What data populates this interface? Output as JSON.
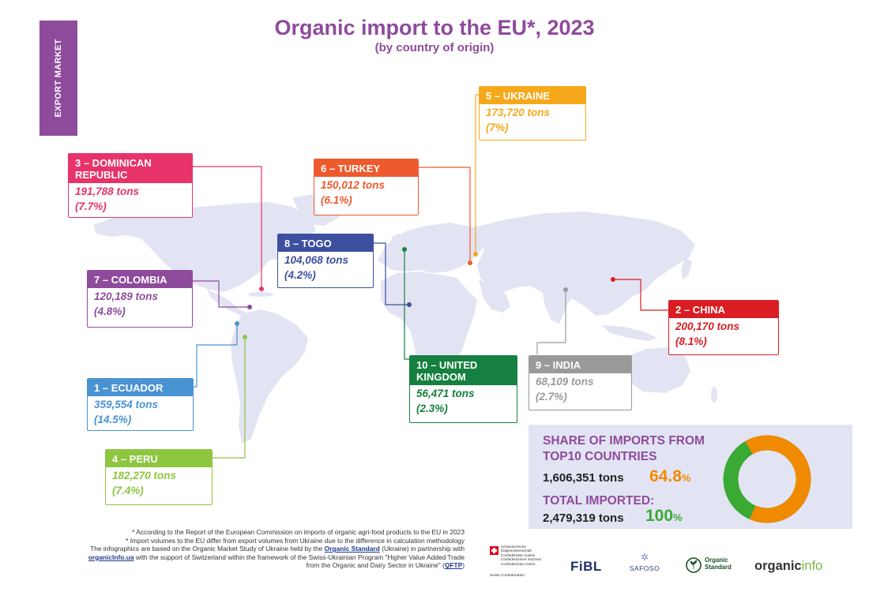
{
  "title": "Organic import to the EU*, 2023",
  "subtitle": "(by country of origin)",
  "side_tab": "EXPORT MARKET",
  "chart_data": {
    "type": "map",
    "title": "Organic import to the EU*, 2023",
    "subtitle": "(by country of origin)",
    "unit": "tons",
    "entries": [
      {
        "rank": 1,
        "country": "ECUADOR",
        "tons": 359554,
        "share_pct": 14.5,
        "color": "#4a93d2"
      },
      {
        "rank": 2,
        "country": "CHINA",
        "tons": 200170,
        "share_pct": 8.1,
        "color": "#da1c23"
      },
      {
        "rank": 3,
        "country": "DOMINICAN REPUBLIC",
        "tons": 191788,
        "share_pct": 7.7,
        "color": "#e7336a"
      },
      {
        "rank": 4,
        "country": "PERU",
        "tons": 182270,
        "share_pct": 7.4,
        "color": "#8dc63f"
      },
      {
        "rank": 5,
        "country": "UKRAINE",
        "tons": 173720,
        "share_pct": 7.0,
        "color": "#f6a81c"
      },
      {
        "rank": 6,
        "country": "TURKEY",
        "tons": 150012,
        "share_pct": 6.1,
        "color": "#ee5a2d"
      },
      {
        "rank": 7,
        "country": "COLOMBIA",
        "tons": 120189,
        "share_pct": 4.8,
        "color": "#8e4b9c"
      },
      {
        "rank": 8,
        "country": "TOGO",
        "tons": 104068,
        "share_pct": 4.2,
        "color": "#3d4f9f"
      },
      {
        "rank": 9,
        "country": "INDIA",
        "tons": 68109,
        "share_pct": 2.7,
        "color": "#9a9a9a"
      },
      {
        "rank": 10,
        "country": "UNITED KINGDOM",
        "tons": 56471,
        "share_pct": 2.3,
        "color": "#15803f"
      }
    ],
    "share": {
      "tons": 1606351,
      "pct": 64.8
    },
    "total": {
      "tons": 2479319,
      "pct": 100
    }
  },
  "callouts": [
    {
      "key": "dominican",
      "header": "3 – DOMINICAN\nREPUBLIC",
      "line1": "191,788 tons",
      "line2": "(7.7%)"
    },
    {
      "key": "colombia",
      "header": "7 – COLOMBIA",
      "line1": "120,189 tons",
      "line2": "(4.8%)"
    },
    {
      "key": "ecuador",
      "header": "1 – ECUADOR",
      "line1": "359,554 tons",
      "line2": "(14.5%)"
    },
    {
      "key": "peru",
      "header": "4 – PERU",
      "line1": "182,270 tons",
      "line2": "(7.4%)"
    },
    {
      "key": "turkey",
      "header": "6 – TURKEY",
      "line1": "150,012 tons",
      "line2": "(6.1%)"
    },
    {
      "key": "togo",
      "header": "8 – TOGO",
      "line1": "104,068 tons",
      "line2": "(4.2%)"
    },
    {
      "key": "ukraine",
      "header": "5 – UKRAINE",
      "line1": "173,720 tons",
      "line2": "(7%)"
    },
    {
      "key": "uk",
      "header": "10 – UNITED\nKINGDOM",
      "line1": "56,471 tons",
      "line2": "(2.3%)"
    },
    {
      "key": "india",
      "header": "9 – INDIA",
      "line1": "68,109 tons",
      "line2": "(2.7%)"
    },
    {
      "key": "china",
      "header": "2 – CHINA",
      "line1": "200,170 tons",
      "line2": "(8.1%)"
    }
  ],
  "summary": {
    "share_title": "SHARE OF IMPORTS FROM TOP10 COUNTRIES",
    "share_tons": "1,606,351 tons",
    "share_pct_value": "64.8",
    "share_pct_sign": "%",
    "total_title": "TOTAL IMPORTED:",
    "total_tons": "2,479,319 tons",
    "total_pct_value": "100",
    "total_pct_sign": "%",
    "donut_fraction": 0.648,
    "donut_colors": {
      "share": "#f08a00",
      "rest": "#3aaa35"
    }
  },
  "footnotes": {
    "line1": "* According to the Report of the European Commission on imports of organic agri-food products to the EU in 2023",
    "line2": "* Import volumes to the EU differ from export volumes from Ukraine due to the difference in calculation methodology",
    "line3a": "The infographics are based on the Organic Market Study of Ukraine held by the ",
    "line3_link": "Organic Standard",
    "line3b": " (Ukraine) in partnership with",
    "line4_link": "organicInfo.ua",
    "line4b": " with the support of Switzerland within the framework of the Swiss-Ukrainian Program \"Higher Value Added Trade",
    "line5a": "from the Organic and Dairy Sector in Ukraine\" (",
    "line5_link": "QFTP",
    "line5b": ")"
  },
  "logos": {
    "swiss_lines": [
      "Schweizerische Eidgenossenschaft",
      "Confédération suisse",
      "Confederazione Svizzera",
      "Confederaziun svizra"
    ],
    "swiss_small": "Swiss Confederation",
    "fibl": "FiBL",
    "safoso": "SAFOSO",
    "organic_standard_1": "Organic",
    "organic_standard_2": "Standard",
    "organicinfo_a": "organic",
    "organicinfo_b": "info"
  },
  "colors": {
    "purple": "#8e4b9c",
    "map": "#e3e4f3",
    "panel": "#e3e4f3"
  }
}
